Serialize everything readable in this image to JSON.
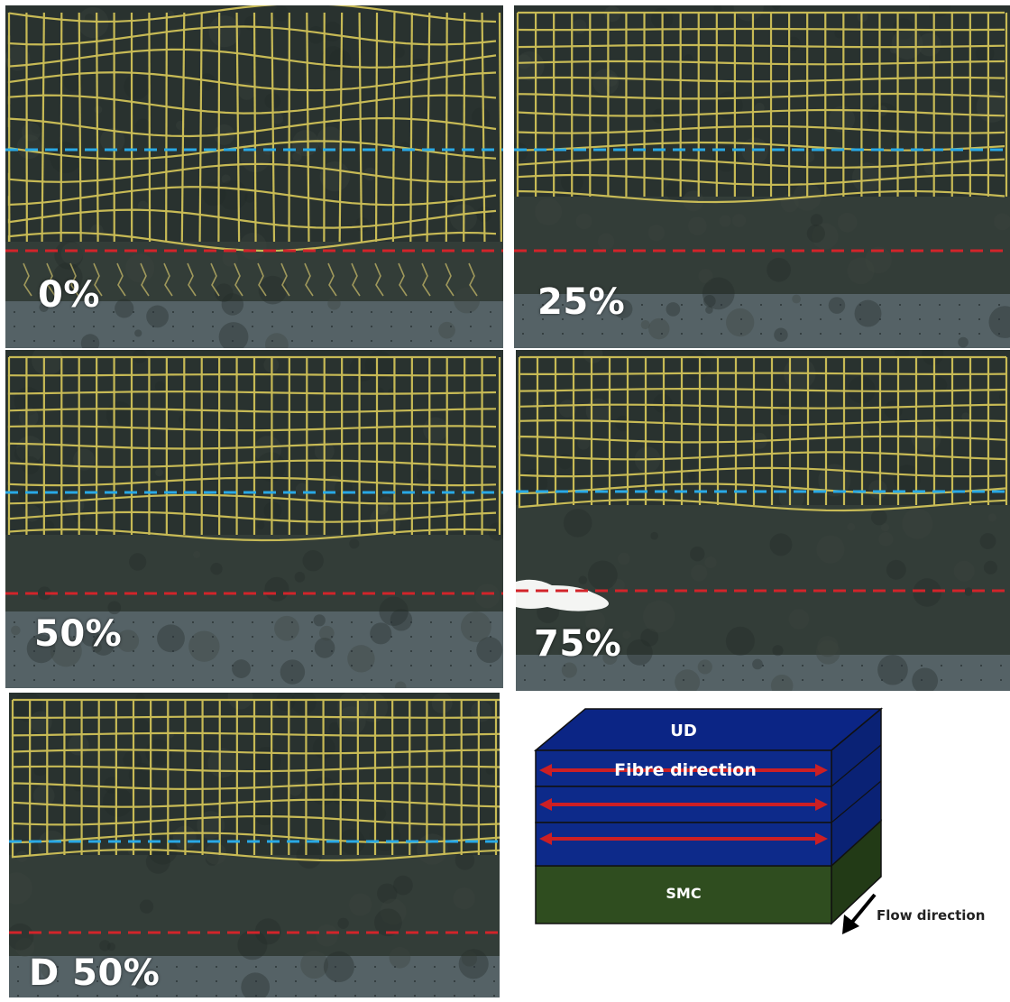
{
  "panels": [
    {
      "label": "0%"
    },
    {
      "label": "25%"
    },
    {
      "label": "50%"
    },
    {
      "label": "75%"
    },
    {
      "label": "D 50%"
    }
  ],
  "legend": {
    "blue_line_color": "#29a9e6",
    "red_line_color": "#d2242a"
  },
  "diagram": {
    "ud_label": "UD",
    "fibre_label": "Fibre direction",
    "smc_label": "SMC",
    "flow_label": "Flow direction",
    "ud_color": "#0d2a8a",
    "smc_color": "#2f4d1f",
    "arrow_color": "#cc1f24"
  }
}
